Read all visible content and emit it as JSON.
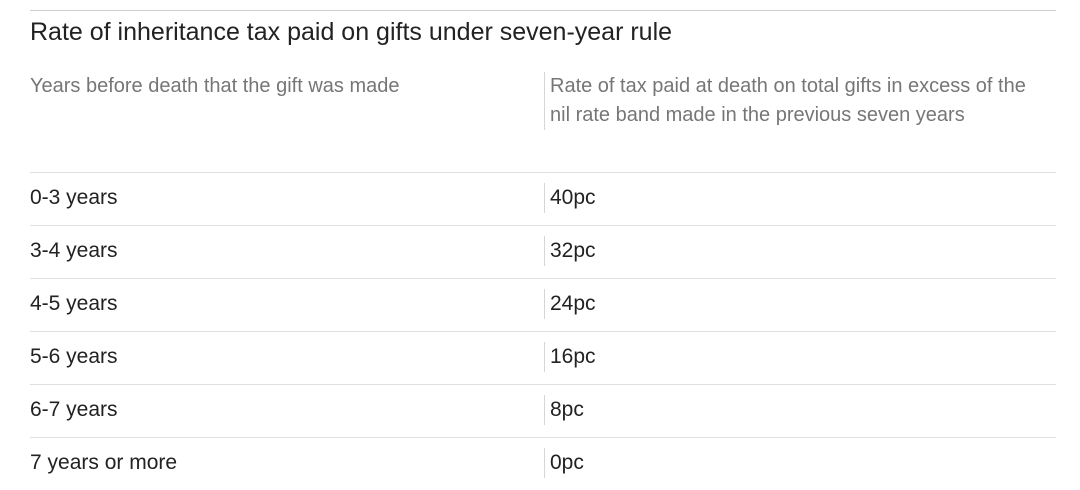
{
  "table": {
    "title": "Rate of inheritance tax paid on gifts under seven-year rule",
    "columns": [
      "Years before death that the gift was made",
      "Rate of tax paid at death on total gifts in excess of the nil rate band made in the previous seven years"
    ],
    "rows": [
      [
        "0-3 years",
        "40pc"
      ],
      [
        "3-4 years",
        "32pc"
      ],
      [
        "4-5 years",
        "24pc"
      ],
      [
        "5-6 years",
        "16pc"
      ],
      [
        "6-7 years",
        "8pc"
      ],
      [
        "7 years or more",
        "0pc"
      ]
    ]
  }
}
